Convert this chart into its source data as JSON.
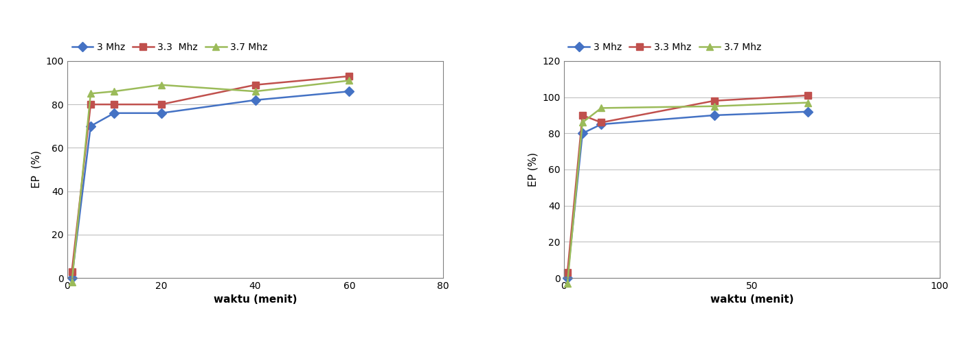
{
  "left": {
    "x": [
      1,
      5,
      10,
      20,
      40,
      60
    ],
    "series": {
      "3 Mhz": [
        0,
        70,
        76,
        76,
        82,
        86
      ],
      "3.3  Mhz": [
        3,
        80,
        80,
        80,
        89,
        93
      ],
      "3.7 Mhz": [
        -2,
        85,
        86,
        89,
        86,
        91
      ]
    },
    "colors": {
      "3 Mhz": "#4472C4",
      "3.3  Mhz": "#C0504D",
      "3.7 Mhz": "#9BBB59"
    },
    "markers": {
      "3 Mhz": "D",
      "3.3  Mhz": "s",
      "3.7 Mhz": "^"
    },
    "xlabel": "waktu (menit)",
    "ylabel": "EP  (%)",
    "xlim": [
      0,
      80
    ],
    "ylim": [
      0,
      100
    ],
    "xticks": [
      0,
      20,
      40,
      60,
      80
    ],
    "yticks": [
      0,
      20,
      40,
      60,
      80,
      100
    ]
  },
  "right": {
    "x": [
      1,
      5,
      10,
      40,
      65
    ],
    "series": {
      "3 Mhz": [
        0,
        80,
        85,
        90,
        92
      ],
      "3.3 Mhz": [
        3,
        90,
        86,
        98,
        101
      ],
      "3.7 Mhz": [
        -3,
        86,
        94,
        95,
        97
      ]
    },
    "colors": {
      "3 Mhz": "#4472C4",
      "3.3 Mhz": "#C0504D",
      "3.7 Mhz": "#9BBB59"
    },
    "markers": {
      "3 Mhz": "D",
      "3.3 Mhz": "s",
      "3.7 Mhz": "^"
    },
    "xlabel": "waktu (menit)",
    "ylabel": "EP (%)",
    "xlim": [
      0,
      100
    ],
    "ylim": [
      0,
      120
    ],
    "xticks": [
      0,
      50,
      100
    ],
    "yticks": [
      0,
      20,
      40,
      60,
      80,
      100,
      120
    ]
  },
  "legend_labels_left": [
    "3 Mhz",
    "3.3  Mhz",
    "3.7 Mhz"
  ],
  "legend_labels_right": [
    "3 Mhz",
    "3.3 Mhz",
    "3.7 Mhz"
  ],
  "bg_color": "#FFFFFF",
  "grid_color": "#C0C0C0",
  "line_width": 1.8,
  "marker_size": 7,
  "font_size_tick": 10,
  "font_size_label": 11,
  "font_size_legend": 10
}
